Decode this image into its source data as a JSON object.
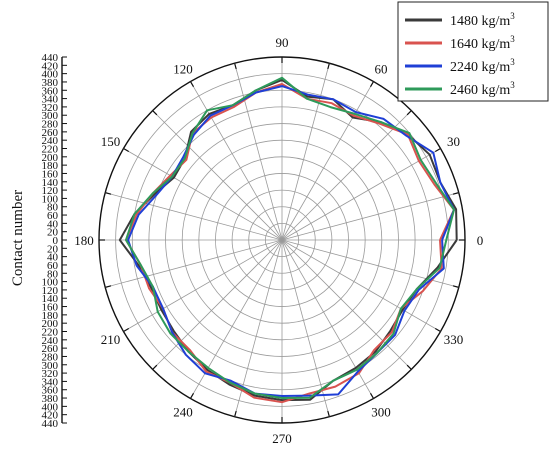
{
  "chart_data": {
    "type": "line",
    "subtype": "polar",
    "title": "",
    "ylabel": "Contact number",
    "radial_range": [
      0,
      440
    ],
    "radial_ticks": [
      "440",
      "420",
      "400",
      "380",
      "360",
      "340",
      "320",
      "300",
      "280",
      "260",
      "240",
      "220",
      "200",
      "180",
      "160",
      "140",
      "120",
      "100",
      "80",
      "60",
      "40",
      "20",
      "0",
      "20",
      "40",
      "60",
      "80",
      "100",
      "120",
      "140",
      "160",
      "180",
      "200",
      "220",
      "240",
      "260",
      "280",
      "300",
      "320",
      "340",
      "360",
      "380",
      "400",
      "420",
      "440"
    ],
    "angle_ticks": [
      "90",
      "60",
      "30",
      "0",
      "330",
      "300",
      "270",
      "240",
      "210",
      "180",
      "150",
      "120"
    ],
    "angle_tick_degrees": [
      90,
      60,
      30,
      0,
      330,
      300,
      270,
      240,
      210,
      180,
      150,
      120
    ],
    "grid": true,
    "legend_position": "top-right",
    "theta": [
      0,
      10,
      20,
      30,
      40,
      50,
      60,
      70,
      80,
      90,
      100,
      110,
      120,
      130,
      140,
      150,
      160,
      170,
      180,
      190,
      200,
      210,
      220,
      230,
      240,
      250,
      260,
      270,
      280,
      290,
      300,
      310,
      320,
      330,
      340,
      350
    ],
    "series": [
      {
        "name": "1480 kg/m",
        "name_sup": "3",
        "color": "#3a3a3a",
        "values": [
          420,
          425,
          405,
          410,
          395,
          370,
          340,
          360,
          350,
          385,
          365,
          345,
          350,
          340,
          305,
          300,
          325,
          360,
          390,
          350,
          335,
          335,
          340,
          350,
          360,
          370,
          380,
          385,
          390,
          360,
          355,
          350,
          340,
          335,
          345,
          380
        ]
      },
      {
        "name": "1640 kg/m",
        "name_sup": "3",
        "color": "#d9534f",
        "values": [
          380,
          420,
          390,
          380,
          395,
          365,
          345,
          350,
          345,
          375,
          360,
          340,
          340,
          335,
          300,
          310,
          330,
          355,
          375,
          345,
          340,
          330,
          345,
          345,
          365,
          365,
          385,
          390,
          375,
          375,
          370,
          345,
          345,
          330,
          360,
          390
        ]
      },
      {
        "name": "2240 kg/m",
        "name_sup": "3",
        "color": "#1f3fd6",
        "values": [
          385,
          420,
          405,
          420,
          390,
          380,
          355,
          360,
          355,
          370,
          360,
          345,
          345,
          330,
          310,
          305,
          320,
          350,
          370,
          355,
          330,
          330,
          345,
          360,
          370,
          360,
          375,
          375,
          380,
          395,
          365,
          355,
          355,
          340,
          350,
          395
        ]
      },
      {
        "name": "2460 kg/m",
        "name_sup": "3",
        "color": "#2e9a5a",
        "values": [
          395,
          420,
          395,
          385,
          400,
          370,
          350,
          340,
          345,
          390,
          365,
          345,
          360,
          335,
          305,
          305,
          330,
          360,
          375,
          345,
          330,
          345,
          350,
          350,
          355,
          365,
          375,
          380,
          385,
          360,
          360,
          355,
          350,
          330,
          345,
          385
        ]
      }
    ]
  }
}
